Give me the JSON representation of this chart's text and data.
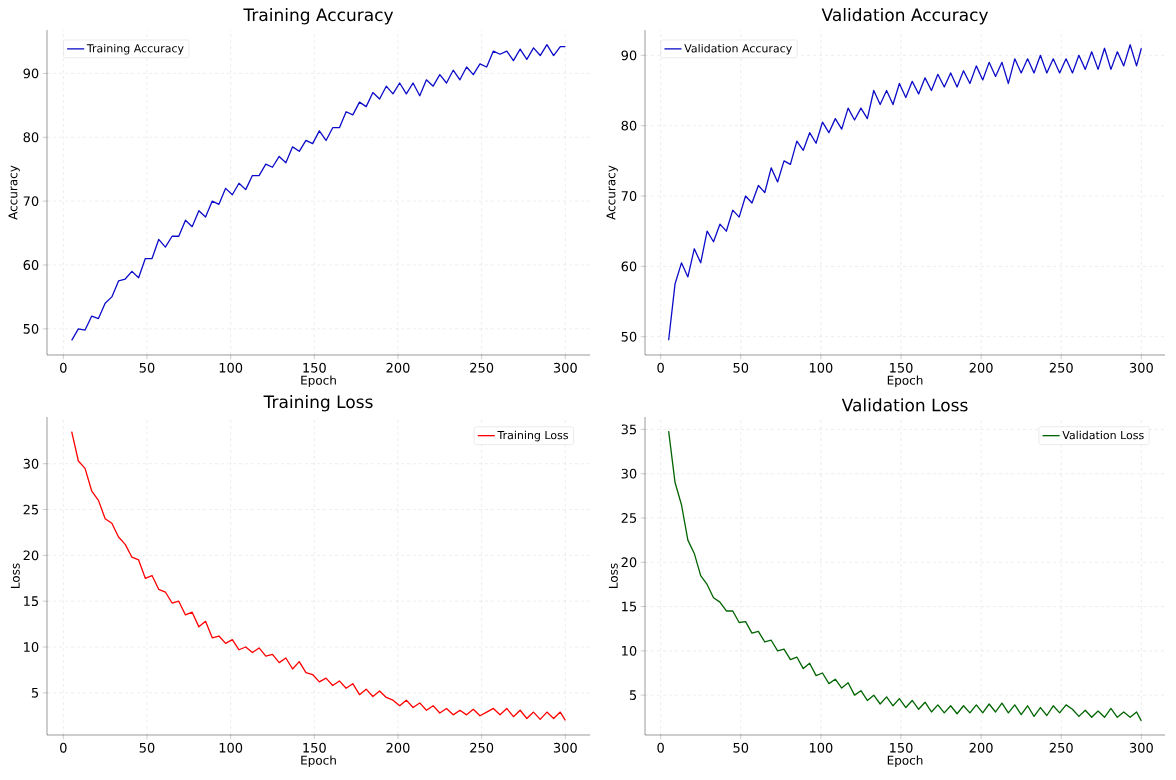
{
  "chart_data": [
    {
      "type": "line",
      "title": "Training Accuracy",
      "xlabel": "Epoch",
      "ylabel": "Accuracy",
      "grid": true,
      "legend": "top left",
      "xlim": [
        -9.75,
        314.75
      ],
      "ylim": [
        45.9,
        96.8
      ],
      "xticks": [
        0,
        50,
        100,
        150,
        200,
        250,
        300
      ],
      "yticks": [
        50,
        60,
        70,
        80,
        90
      ],
      "x": [
        5,
        9,
        13,
        17,
        21,
        25,
        29,
        33,
        37,
        41,
        45,
        49,
        53,
        57,
        61,
        65,
        69,
        73,
        77,
        81,
        85,
        89,
        93,
        97,
        101,
        105,
        109,
        113,
        117,
        121,
        125,
        129,
        133,
        137,
        141,
        145,
        149,
        153,
        157,
        161,
        165,
        169,
        173,
        177,
        181,
        185,
        189,
        193,
        197,
        201,
        205,
        209,
        213,
        217,
        221,
        225,
        229,
        233,
        237,
        241,
        245,
        249,
        253,
        257,
        261,
        265,
        269,
        273,
        277,
        281,
        285,
        289,
        293,
        297,
        300
      ],
      "series": [
        {
          "name": "Training Accuracy",
          "color": "#0c0cc8",
          "values": [
            48.2,
            50.0,
            49.8,
            52.0,
            51.6,
            54.0,
            55.0,
            57.5,
            57.8,
            59.0,
            58.0,
            61.0,
            61.0,
            64.0,
            62.8,
            64.5,
            64.5,
            67.0,
            66.0,
            68.5,
            67.5,
            70.0,
            69.5,
            72.0,
            71.0,
            72.8,
            71.8,
            74.0,
            74.0,
            75.8,
            75.3,
            77.0,
            76.0,
            78.5,
            77.8,
            79.5,
            79.0,
            81.0,
            79.5,
            81.5,
            81.5,
            84.0,
            83.5,
            85.5,
            84.8,
            87.0,
            86.0,
            88.0,
            86.8,
            88.5,
            86.8,
            88.5,
            86.5,
            89.0,
            88.0,
            89.8,
            88.5,
            90.5,
            89.0,
            91.0,
            89.8,
            91.5,
            91.0,
            93.5,
            93.0,
            93.5,
            92.0,
            93.8,
            92.2,
            94.0,
            92.8,
            94.5,
            92.8,
            94.2,
            94.2
          ]
        }
      ]
    },
    {
      "type": "line",
      "title": "Validation Accuracy",
      "xlabel": "Epoch",
      "ylabel": "Accuracy",
      "grid": true,
      "legend": "top left",
      "xlim": [
        -9.75,
        314.75
      ],
      "ylim": [
        47.4,
        93.6
      ],
      "xticks": [
        0,
        50,
        100,
        150,
        200,
        250,
        300
      ],
      "yticks": [
        50,
        60,
        70,
        80,
        90
      ],
      "x": [
        5,
        9,
        13,
        17,
        21,
        25,
        29,
        33,
        37,
        41,
        45,
        49,
        53,
        57,
        61,
        65,
        69,
        73,
        77,
        81,
        85,
        89,
        93,
        97,
        101,
        105,
        109,
        113,
        117,
        121,
        125,
        129,
        133,
        137,
        141,
        145,
        149,
        153,
        157,
        161,
        165,
        169,
        173,
        177,
        181,
        185,
        189,
        193,
        197,
        201,
        205,
        209,
        213,
        217,
        221,
        225,
        229,
        233,
        237,
        241,
        245,
        249,
        253,
        257,
        261,
        265,
        269,
        273,
        277,
        281,
        285,
        289,
        293,
        297,
        300
      ],
      "series": [
        {
          "name": "Validation Accuracy",
          "color": "#0c0cc8",
          "values": [
            49.5,
            57.5,
            60.5,
            58.5,
            62.5,
            60.5,
            65.0,
            63.5,
            66.0,
            65.0,
            68.0,
            67.0,
            70.0,
            69.0,
            71.5,
            70.5,
            74.0,
            72.0,
            75.0,
            74.5,
            77.8,
            76.5,
            79.0,
            77.5,
            80.5,
            79.0,
            81.0,
            79.5,
            82.5,
            80.8,
            82.5,
            81.0,
            85.0,
            83.0,
            85.0,
            83.0,
            86.0,
            84.0,
            86.3,
            84.5,
            86.8,
            85.0,
            87.3,
            85.5,
            87.5,
            85.5,
            87.8,
            86.0,
            88.5,
            86.5,
            89.0,
            87.0,
            89.0,
            86.0,
            89.5,
            87.5,
            89.5,
            87.5,
            90.0,
            87.5,
            89.5,
            87.5,
            89.5,
            87.5,
            90.0,
            88.0,
            90.5,
            88.0,
            91.0,
            88.0,
            90.5,
            88.5,
            91.5,
            88.5,
            91.0
          ]
        }
      ]
    },
    {
      "type": "line",
      "title": "Training Loss",
      "xlabel": "Epoch",
      "ylabel": "Loss",
      "grid": true,
      "legend": "top right",
      "xlim": [
        -9.75,
        314.75
      ],
      "ylim": [
        0.4,
        35.1
      ],
      "xticks": [
        0,
        50,
        100,
        150,
        200,
        250,
        300
      ],
      "yticks": [
        5,
        10,
        15,
        20,
        25,
        30
      ],
      "x": [
        5,
        9,
        13,
        17,
        21,
        25,
        29,
        33,
        37,
        41,
        45,
        49,
        53,
        57,
        61,
        65,
        69,
        73,
        77,
        81,
        85,
        89,
        93,
        97,
        101,
        105,
        109,
        113,
        117,
        121,
        125,
        129,
        133,
        137,
        141,
        145,
        149,
        153,
        157,
        161,
        165,
        169,
        173,
        177,
        181,
        185,
        189,
        193,
        197,
        201,
        205,
        209,
        213,
        217,
        221,
        225,
        229,
        233,
        237,
        241,
        245,
        249,
        253,
        257,
        261,
        265,
        269,
        273,
        277,
        281,
        285,
        289,
        293,
        297,
        300
      ],
      "series": [
        {
          "name": "Training Loss",
          "color": "#ff0000",
          "values": [
            33.5,
            30.3,
            29.5,
            27.0,
            26.0,
            24.0,
            23.5,
            22.0,
            21.2,
            19.8,
            19.5,
            17.5,
            17.8,
            16.3,
            16.0,
            14.8,
            15.0,
            13.5,
            13.8,
            12.2,
            12.8,
            11.0,
            11.2,
            10.4,
            10.8,
            9.7,
            10.0,
            9.4,
            9.9,
            9.0,
            9.2,
            8.3,
            8.8,
            7.6,
            8.4,
            7.2,
            7.0,
            6.2,
            6.6,
            5.8,
            6.3,
            5.5,
            6.0,
            4.8,
            5.4,
            4.6,
            5.2,
            4.5,
            4.2,
            3.6,
            4.2,
            3.4,
            3.9,
            3.1,
            3.6,
            2.8,
            3.3,
            2.6,
            3.1,
            2.6,
            3.2,
            2.5,
            2.9,
            3.3,
            2.6,
            3.3,
            2.4,
            3.1,
            2.2,
            2.9,
            2.1,
            2.9,
            2.2,
            2.9,
            2.0
          ]
        }
      ]
    },
    {
      "type": "line",
      "title": "Validation Loss",
      "xlabel": "Epoch",
      "ylabel": "Loss",
      "grid": true,
      "legend": "top right",
      "xlim": [
        -9.75,
        314.75
      ],
      "ylim": [
        0.5,
        36.4
      ],
      "xticks": [
        0,
        50,
        100,
        150,
        200,
        250,
        300
      ],
      "yticks": [
        5,
        10,
        15,
        20,
        25,
        30,
        35
      ],
      "x": [
        5,
        9,
        13,
        17,
        21,
        25,
        29,
        33,
        37,
        41,
        45,
        49,
        53,
        57,
        61,
        65,
        69,
        73,
        77,
        81,
        85,
        89,
        93,
        97,
        101,
        105,
        109,
        113,
        117,
        121,
        125,
        129,
        133,
        137,
        141,
        145,
        149,
        153,
        157,
        161,
        165,
        169,
        173,
        177,
        181,
        185,
        189,
        193,
        197,
        201,
        205,
        209,
        213,
        217,
        221,
        225,
        229,
        233,
        237,
        241,
        245,
        249,
        253,
        257,
        261,
        265,
        269,
        273,
        277,
        281,
        285,
        289,
        293,
        297,
        300
      ],
      "series": [
        {
          "name": "Validation Loss",
          "color": "#006400",
          "values": [
            34.8,
            29.0,
            26.5,
            22.5,
            21.0,
            18.5,
            17.5,
            16.0,
            15.5,
            14.5,
            14.5,
            13.2,
            13.3,
            12.0,
            12.2,
            11.0,
            11.2,
            10.0,
            10.2,
            9.0,
            9.3,
            8.0,
            8.6,
            7.2,
            7.5,
            6.3,
            6.8,
            5.8,
            6.4,
            5.0,
            5.5,
            4.4,
            5.0,
            4.0,
            4.8,
            3.8,
            4.6,
            3.6,
            4.4,
            3.4,
            4.2,
            3.1,
            3.9,
            3.0,
            3.8,
            2.9,
            3.8,
            3.0,
            3.9,
            3.0,
            4.0,
            3.1,
            4.1,
            3.0,
            3.9,
            2.8,
            3.8,
            2.6,
            3.6,
            2.7,
            3.8,
            3.0,
            3.9,
            3.4,
            2.6,
            3.3,
            2.5,
            3.2,
            2.5,
            3.5,
            2.5,
            3.1,
            2.5,
            3.1,
            2.1
          ]
        }
      ]
    }
  ]
}
